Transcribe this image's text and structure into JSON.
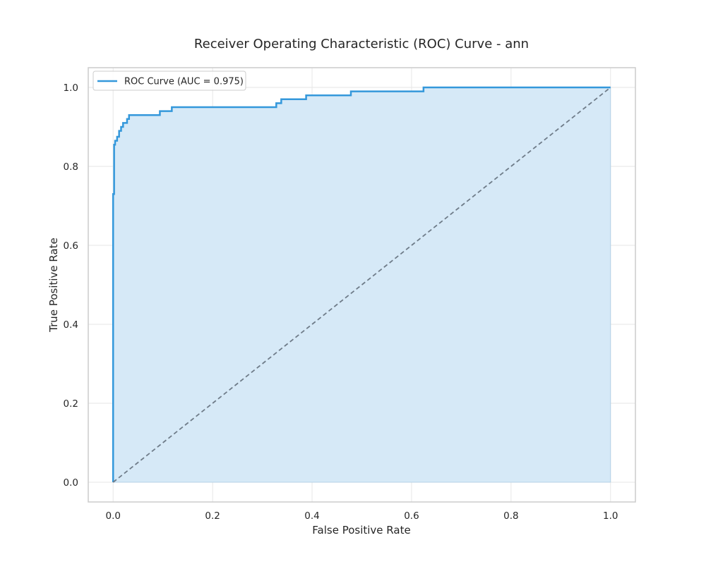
{
  "chart_data": {
    "type": "line",
    "title": "Receiver Operating Characteristic (ROC) Curve - ann",
    "xlabel": "False Positive Rate",
    "ylabel": "True Positive Rate",
    "xlim": [
      -0.05,
      1.05
    ],
    "ylim": [
      -0.05,
      1.05
    ],
    "xticks": [
      0.0,
      0.2,
      0.4,
      0.6,
      0.8,
      1.0
    ],
    "yticks": [
      0.0,
      0.2,
      0.4,
      0.6,
      0.8,
      1.0
    ],
    "xtick_labels": [
      "0.0",
      "0.2",
      "0.4",
      "0.6",
      "0.8",
      "1.0"
    ],
    "ytick_labels": [
      "0.0",
      "0.2",
      "0.4",
      "0.6",
      "0.8",
      "1.0"
    ],
    "grid": true,
    "legend_position": "top-left",
    "series": [
      {
        "name": "ROC Curve (AUC = 0.975)",
        "color": "#3498db",
        "fill": true,
        "fill_color": "#d6e9f7",
        "x": [
          0.0,
          0.0,
          0.002,
          0.002,
          0.004,
          0.004,
          0.008,
          0.008,
          0.012,
          0.012,
          0.016,
          0.016,
          0.02,
          0.02,
          0.028,
          0.028,
          0.032,
          0.032,
          0.094,
          0.094,
          0.118,
          0.118,
          0.328,
          0.328,
          0.338,
          0.338,
          0.388,
          0.388,
          0.478,
          0.478,
          0.624,
          0.624,
          1.0
        ],
        "y": [
          0.0,
          0.73,
          0.73,
          0.855,
          0.855,
          0.865,
          0.865,
          0.875,
          0.875,
          0.89,
          0.89,
          0.9,
          0.9,
          0.91,
          0.91,
          0.92,
          0.92,
          0.93,
          0.93,
          0.94,
          0.94,
          0.95,
          0.95,
          0.96,
          0.96,
          0.97,
          0.97,
          0.98,
          0.98,
          0.99,
          0.99,
          1.0,
          1.0
        ]
      },
      {
        "name": "",
        "role": "chance-line",
        "color": "#6f7c89",
        "dashed": true,
        "x": [
          0.0,
          1.0
        ],
        "y": [
          0.0,
          1.0
        ]
      }
    ],
    "legend_entries": [
      "ROC Curve (AUC = 0.975)"
    ]
  }
}
